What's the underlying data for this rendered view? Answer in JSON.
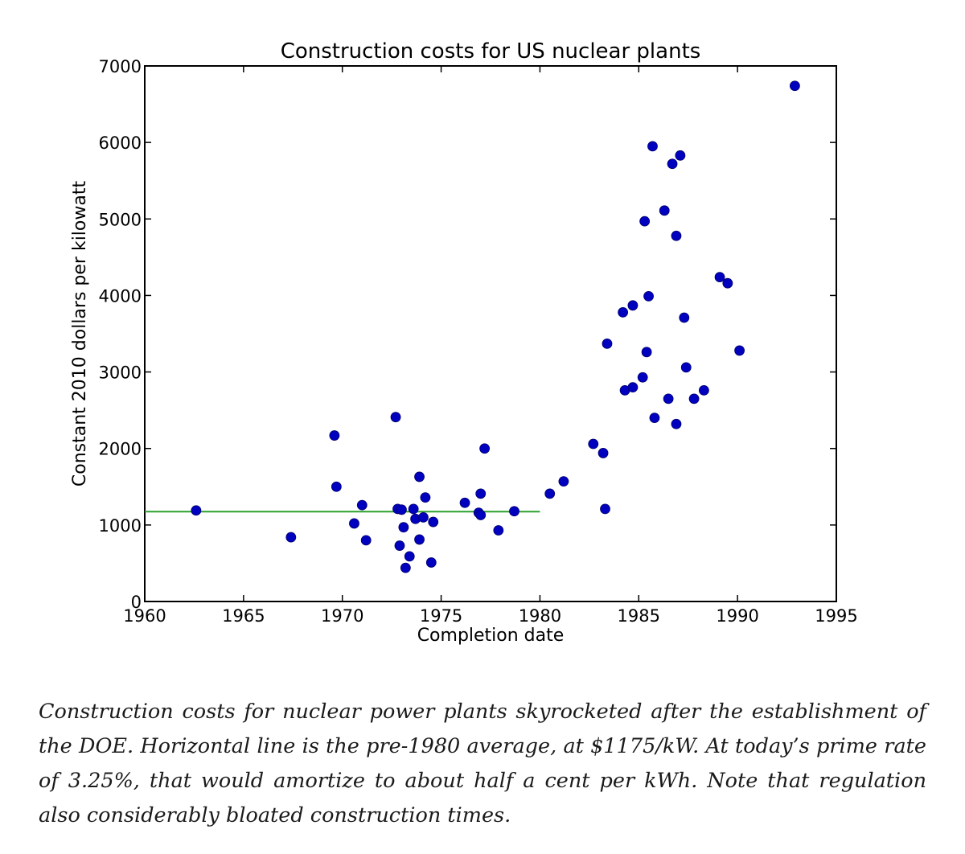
{
  "chart_data": {
    "type": "scatter",
    "title": "Construction costs for US nuclear plants",
    "xlabel": "Completion date",
    "ylabel": "Constant 2010 dollars per kilowatt",
    "xlim": [
      1960,
      1995
    ],
    "ylim": [
      0,
      7000
    ],
    "xticks": [
      1960,
      1965,
      1970,
      1975,
      1980,
      1985,
      1990,
      1995
    ],
    "yticks": [
      0,
      1000,
      2000,
      3000,
      4000,
      5000,
      6000,
      7000
    ],
    "grid": false,
    "marker_color": "#0000bf",
    "reference_line": {
      "y": 1175,
      "x_start": 1960,
      "x_end": 1980,
      "color": "#2ca02c"
    },
    "points": [
      {
        "x": 1962.6,
        "y": 1190
      },
      {
        "x": 1967.4,
        "y": 840
      },
      {
        "x": 1969.6,
        "y": 2170
      },
      {
        "x": 1969.7,
        "y": 1500
      },
      {
        "x": 1970.6,
        "y": 1020
      },
      {
        "x": 1971.0,
        "y": 1260
      },
      {
        "x": 1971.2,
        "y": 800
      },
      {
        "x": 1972.7,
        "y": 2410
      },
      {
        "x": 1972.8,
        "y": 1210
      },
      {
        "x": 1972.9,
        "y": 730
      },
      {
        "x": 1973.0,
        "y": 1200
      },
      {
        "x": 1973.1,
        "y": 970
      },
      {
        "x": 1973.2,
        "y": 440
      },
      {
        "x": 1973.4,
        "y": 590
      },
      {
        "x": 1973.6,
        "y": 1210
      },
      {
        "x": 1973.7,
        "y": 1080
      },
      {
        "x": 1973.9,
        "y": 810
      },
      {
        "x": 1973.9,
        "y": 1630
      },
      {
        "x": 1974.1,
        "y": 1100
      },
      {
        "x": 1974.2,
        "y": 1360
      },
      {
        "x": 1974.5,
        "y": 510
      },
      {
        "x": 1974.6,
        "y": 1040
      },
      {
        "x": 1976.2,
        "y": 1290
      },
      {
        "x": 1976.9,
        "y": 1160
      },
      {
        "x": 1977.0,
        "y": 1410
      },
      {
        "x": 1977.0,
        "y": 1130
      },
      {
        "x": 1977.2,
        "y": 2000
      },
      {
        "x": 1977.9,
        "y": 930
      },
      {
        "x": 1978.7,
        "y": 1180
      },
      {
        "x": 1980.5,
        "y": 1410
      },
      {
        "x": 1981.2,
        "y": 1570
      },
      {
        "x": 1982.7,
        "y": 2060
      },
      {
        "x": 1983.2,
        "y": 1940
      },
      {
        "x": 1983.3,
        "y": 1210
      },
      {
        "x": 1983.4,
        "y": 3370
      },
      {
        "x": 1984.2,
        "y": 3780
      },
      {
        "x": 1984.3,
        "y": 2760
      },
      {
        "x": 1984.7,
        "y": 2800
      },
      {
        "x": 1984.7,
        "y": 3870
      },
      {
        "x": 1985.2,
        "y": 2930
      },
      {
        "x": 1985.3,
        "y": 4970
      },
      {
        "x": 1985.4,
        "y": 3260
      },
      {
        "x": 1985.5,
        "y": 3990
      },
      {
        "x": 1985.7,
        "y": 5950
      },
      {
        "x": 1985.8,
        "y": 2400
      },
      {
        "x": 1986.3,
        "y": 5110
      },
      {
        "x": 1986.5,
        "y": 2650
      },
      {
        "x": 1986.7,
        "y": 5720
      },
      {
        "x": 1986.9,
        "y": 4780
      },
      {
        "x": 1986.9,
        "y": 2320
      },
      {
        "x": 1987.1,
        "y": 5830
      },
      {
        "x": 1987.3,
        "y": 3710
      },
      {
        "x": 1987.4,
        "y": 3060
      },
      {
        "x": 1987.8,
        "y": 2650
      },
      {
        "x": 1988.3,
        "y": 2760
      },
      {
        "x": 1989.1,
        "y": 4240
      },
      {
        "x": 1989.5,
        "y": 4160
      },
      {
        "x": 1990.1,
        "y": 3280
      },
      {
        "x": 1992.9,
        "y": 6740
      }
    ]
  },
  "caption": "Construction costs for nuclear power plants skyrocketed after the establishment of the DOE. Horizontal line is the pre-1980 average, at $1175/kW. At today’s prime rate of 3.25%, that would amortize to about half a cent per kWh. Note that regulation also con­siderably bloated construction times."
}
